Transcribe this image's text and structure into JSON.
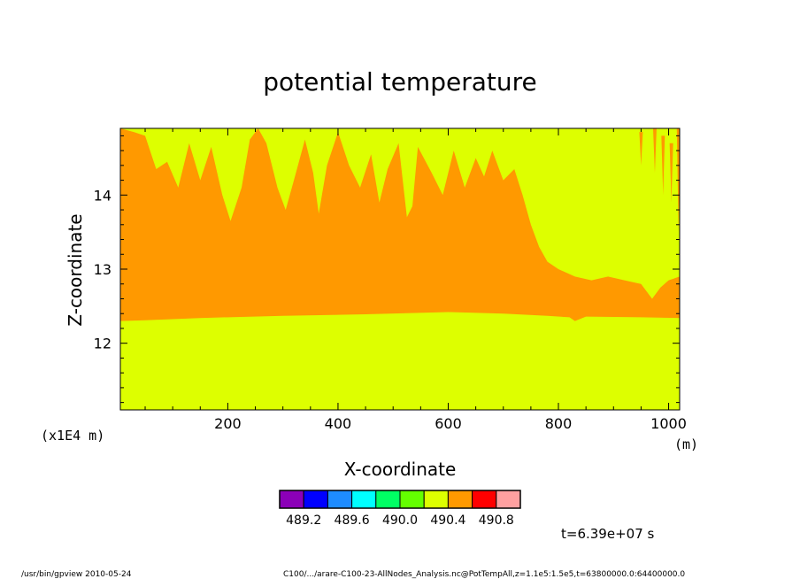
{
  "chart_data": {
    "type": "heatmap",
    "title": "potential temperature",
    "xlabel": "X-coordinate",
    "ylabel": "Z-coordinate",
    "x_units": "(m)",
    "y_units": "(x1E4 m)",
    "xlim": [
      5,
      1020
    ],
    "ylim": [
      11.1,
      14.9
    ],
    "x_ticks": [
      200,
      400,
      600,
      800,
      1000
    ],
    "y_ticks": [
      12,
      13,
      14
    ],
    "levels": [
      489.2,
      489.6,
      490.0,
      490.4,
      490.8
    ],
    "colorbar_labels": [
      "489.2",
      "489.6",
      "490.0",
      "490.4",
      "490.8"
    ],
    "colorbar_colors": [
      "#8b00b8",
      "#0000ff",
      "#1e8cff",
      "#00ffff",
      "#00ff64",
      "#64ff00",
      "#ddff00",
      "#ff9900",
      "#ff0000",
      "#ffa0a0"
    ],
    "regions": {
      "background_value": "490.0–490.4",
      "orange_value": "490.4–490.8",
      "orange_layer_bottom": [
        [
          5,
          12.3
        ],
        [
          50,
          12.31
        ],
        [
          150,
          12.34
        ],
        [
          300,
          12.37
        ],
        [
          450,
          12.39
        ],
        [
          600,
          12.42
        ],
        [
          700,
          12.4
        ],
        [
          780,
          12.37
        ],
        [
          820,
          12.35
        ],
        [
          830,
          12.3
        ],
        [
          850,
          12.36
        ],
        [
          950,
          12.35
        ],
        [
          1020,
          12.34
        ]
      ],
      "orange_layer_top": [
        [
          5,
          14.9
        ],
        [
          30,
          14.85
        ],
        [
          50,
          14.8
        ],
        [
          70,
          14.35
        ],
        [
          90,
          14.45
        ],
        [
          110,
          14.1
        ],
        [
          130,
          14.7
        ],
        [
          150,
          14.2
        ],
        [
          170,
          14.65
        ],
        [
          190,
          14.0
        ],
        [
          205,
          13.65
        ],
        [
          225,
          14.1
        ],
        [
          240,
          14.75
        ],
        [
          255,
          14.9
        ],
        [
          270,
          14.7
        ],
        [
          290,
          14.1
        ],
        [
          305,
          13.8
        ],
        [
          320,
          14.2
        ],
        [
          340,
          14.75
        ],
        [
          355,
          14.3
        ],
        [
          365,
          13.75
        ],
        [
          380,
          14.4
        ],
        [
          400,
          14.85
        ],
        [
          420,
          14.4
        ],
        [
          440,
          14.1
        ],
        [
          460,
          14.55
        ],
        [
          475,
          13.9
        ],
        [
          490,
          14.35
        ],
        [
          510,
          14.7
        ],
        [
          525,
          13.7
        ],
        [
          535,
          13.85
        ],
        [
          545,
          14.65
        ],
        [
          570,
          14.3
        ],
        [
          590,
          14.0
        ],
        [
          610,
          14.6
        ],
        [
          630,
          14.1
        ],
        [
          650,
          14.5
        ],
        [
          665,
          14.25
        ],
        [
          680,
          14.6
        ],
        [
          700,
          14.2
        ],
        [
          720,
          14.35
        ],
        [
          735,
          14.0
        ],
        [
          750,
          13.6
        ],
        [
          765,
          13.3
        ],
        [
          780,
          13.1
        ],
        [
          800,
          13.0
        ],
        [
          830,
          12.9
        ],
        [
          860,
          12.85
        ],
        [
          890,
          12.9
        ],
        [
          920,
          12.85
        ],
        [
          950,
          12.8
        ],
        [
          970,
          12.6
        ],
        [
          985,
          12.75
        ],
        [
          1000,
          12.85
        ],
        [
          1020,
          12.9
        ]
      ],
      "orange_streaks_upper_right": [
        [
          950,
          14.85,
          14.4
        ],
        [
          975,
          14.9,
          14.3
        ],
        [
          990,
          14.8,
          14.0
        ],
        [
          1005,
          14.7,
          13.9
        ],
        [
          1018,
          14.9,
          13.5
        ]
      ]
    },
    "time_label": "t=6.39e+07 s"
  },
  "footer": {
    "program": "/usr/bin/gpview   2010-05-24",
    "source": "C100/.../arare-C100-23-AllNodes_Analysis.nc@PotTempAll,z=1.1e5:1.5e5,t=63800000.0:64400000.0"
  }
}
